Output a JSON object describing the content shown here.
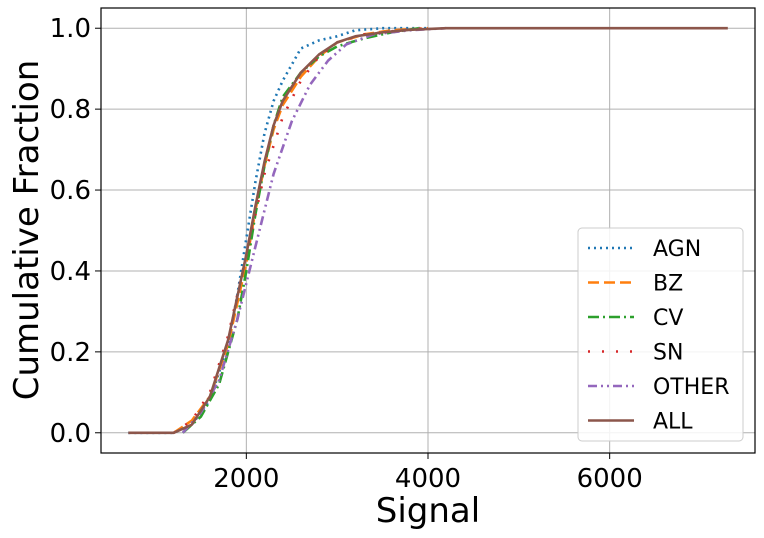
{
  "chart_data": {
    "type": "line",
    "xlabel": "Signal",
    "ylabel": "Cumulative Fraction",
    "xlim": [
      400,
      7600
    ],
    "ylim": [
      -0.05,
      1.05
    ],
    "xticks": [
      2000,
      4000,
      6000
    ],
    "yticks": [
      0.0,
      0.2,
      0.4,
      0.6,
      0.8,
      1.0
    ],
    "xtick_labels": [
      "2000",
      "4000",
      "6000"
    ],
    "ytick_labels": [
      "0.0",
      "0.2",
      "0.4",
      "0.6",
      "0.8",
      "1.0"
    ],
    "grid": true,
    "legend_position": "lower-right",
    "series": [
      {
        "name": "AGN",
        "color": "#1f77b4",
        "dash": "2,4",
        "x": [
          700,
          1200,
          1400,
          1600,
          1800,
          1900,
          2000,
          2100,
          2200,
          2300,
          2400,
          2500,
          2600,
          2800,
          3000,
          3200,
          3500,
          4000
        ],
        "y": [
          0.0,
          0.0,
          0.02,
          0.08,
          0.22,
          0.34,
          0.48,
          0.62,
          0.74,
          0.82,
          0.87,
          0.91,
          0.95,
          0.97,
          0.98,
          0.995,
          1.0,
          1.0
        ]
      },
      {
        "name": "BZ",
        "color": "#ff7f0e",
        "dash": "11,5",
        "x": [
          1200,
          1400,
          1600,
          1800,
          2000,
          2100,
          2200,
          2300,
          2400,
          2600,
          2800,
          3000,
          3300,
          3600,
          4000
        ],
        "y": [
          0.0,
          0.03,
          0.09,
          0.22,
          0.42,
          0.55,
          0.66,
          0.75,
          0.81,
          0.88,
          0.93,
          0.965,
          0.985,
          0.995,
          1.0
        ]
      },
      {
        "name": "CV",
        "color": "#2ca02c",
        "dash": "11,4,2,4",
        "x": [
          1300,
          1500,
          1700,
          1900,
          2000,
          2100,
          2200,
          2300,
          2400,
          2600,
          2800,
          3000,
          3300,
          3600,
          3900
        ],
        "y": [
          0.0,
          0.04,
          0.12,
          0.28,
          0.4,
          0.54,
          0.66,
          0.76,
          0.83,
          0.89,
          0.93,
          0.955,
          0.975,
          0.99,
          1.0
        ]
      },
      {
        "name": "SN",
        "color": "#d62728",
        "dash": "2,12",
        "x": [
          1200,
          1400,
          1600,
          1800,
          2000,
          2200,
          2400,
          2600,
          2800,
          3000,
          3300,
          3700,
          4000
        ],
        "y": [
          0.0,
          0.03,
          0.1,
          0.24,
          0.44,
          0.64,
          0.78,
          0.87,
          0.93,
          0.965,
          0.985,
          0.995,
          1.0
        ]
      },
      {
        "name": "OTHER",
        "color": "#9467bd",
        "dash": "9,4,2,4,2,4",
        "x": [
          1300,
          1500,
          1700,
          1900,
          2100,
          2300,
          2500,
          2700,
          2900,
          3100,
          3400,
          3800,
          4200
        ],
        "y": [
          0.0,
          0.05,
          0.13,
          0.28,
          0.46,
          0.64,
          0.77,
          0.86,
          0.92,
          0.96,
          0.985,
          0.995,
          1.0
        ]
      },
      {
        "name": "ALL",
        "color": "#8c564b",
        "dash": "",
        "x": [
          700,
          1200,
          1400,
          1600,
          1800,
          2000,
          2100,
          2200,
          2300,
          2400,
          2600,
          2800,
          3000,
          3200,
          3500,
          3800,
          4200,
          5000,
          6000,
          7300
        ],
        "y": [
          0.0,
          0.0,
          0.02,
          0.09,
          0.23,
          0.44,
          0.56,
          0.67,
          0.76,
          0.82,
          0.89,
          0.935,
          0.965,
          0.98,
          0.99,
          0.996,
          1.0,
          1.0,
          1.0,
          1.0
        ]
      }
    ]
  }
}
